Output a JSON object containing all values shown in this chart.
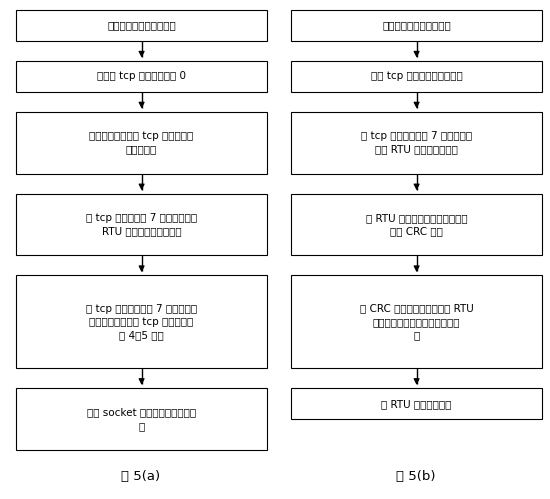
{
  "left_boxes": [
    "计算转换前后的数据长度",
    "初始化 tcp 格式数据全为 0",
    "将储存的信息赋给 tcp 格式数据的\n前两个字节",
    "从 tcp 格式数据第 7 个字节开始将\nRTU 格式的数据复制过来",
    "将 tcp 格式数据从第 7 字节开始的\n剩余字节个数赋给 tcp 格式数据的\n第 4、5 字节",
    "通过 socket 将转换后的数据发出\n去"
  ],
  "right_boxes": [
    "计算转换前后的数据长度",
    "储存 tcp 格式数据的前两字节",
    "将 tcp 格式数据从第 7 字节开始存\n储到 RTU 格式数据寄存器",
    "对 RTU 格式数据寄存器中的内容\n进行 CRC 校验",
    "将 CRC 校验的两个字节加在 RTU\n格式数据寄存器中有效数据的最\n后",
    "将 RTU 数据写到串口"
  ],
  "left_label": "图 5(a)",
  "right_label": "图 5(b)",
  "box_color": "#ffffff",
  "box_edge_color": "#000000",
  "arrow_color": "#000000",
  "text_color": "#000000",
  "bg_color": "#ffffff",
  "font_size": 7.5
}
